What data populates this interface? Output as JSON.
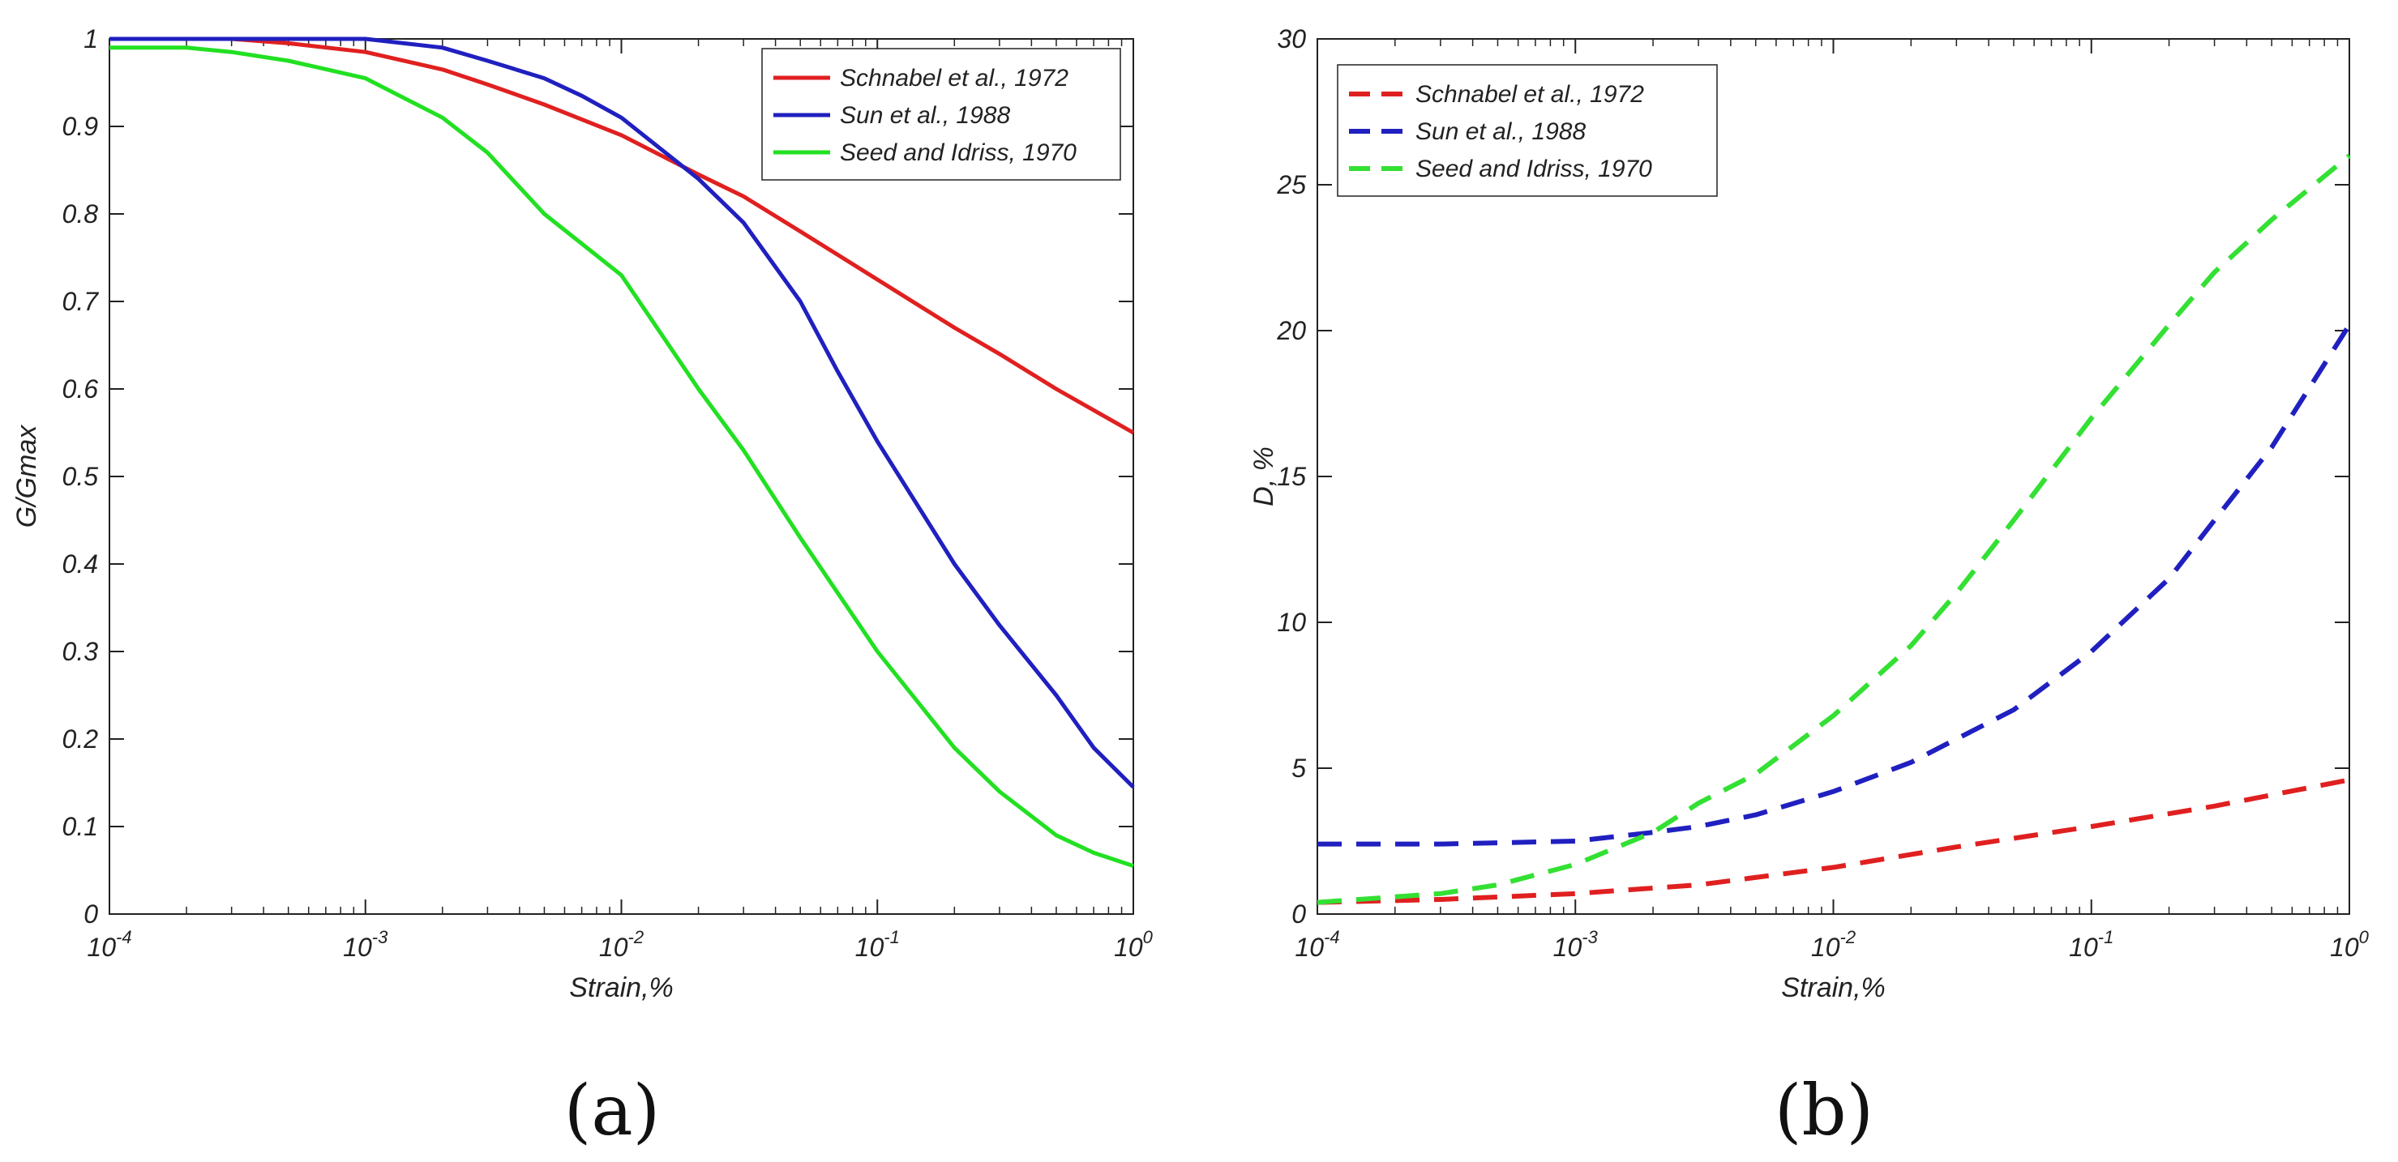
{
  "chart_data": [
    {
      "type": "line",
      "panel": "a",
      "caption": "(a)",
      "xscale": "log",
      "xlim": [
        0.0001,
        1
      ],
      "ylim": [
        0,
        1
      ],
      "xlabel": "Strain,%",
      "ylabel": "G/Gmax",
      "legend_position": "top-right",
      "grid": false,
      "xticks": [
        {
          "value": 0.0001,
          "base": "10",
          "exp": "-4"
        },
        {
          "value": 0.001,
          "base": "10",
          "exp": "-3"
        },
        {
          "value": 0.01,
          "base": "10",
          "exp": "-2"
        },
        {
          "value": 0.1,
          "base": "10",
          "exp": "-1"
        },
        {
          "value": 1,
          "base": "10",
          "exp": "0"
        }
      ],
      "yticks": [
        {
          "value": 0,
          "label": "0"
        },
        {
          "value": 0.1,
          "label": "0.1"
        },
        {
          "value": 0.2,
          "label": "0.2"
        },
        {
          "value": 0.3,
          "label": "0.3"
        },
        {
          "value": 0.4,
          "label": "0.4"
        },
        {
          "value": 0.5,
          "label": "0.5"
        },
        {
          "value": 0.6,
          "label": "0.6"
        },
        {
          "value": 0.7,
          "label": "0.7"
        },
        {
          "value": 0.8,
          "label": "0.8"
        },
        {
          "value": 0.9,
          "label": "0.9"
        },
        {
          "value": 1,
          "label": "1"
        }
      ],
      "series": [
        {
          "name": "Schnabel et al., 1972",
          "color": "#e02020",
          "dashed": false,
          "x": [
            0.0001,
            0.0003,
            0.0005,
            0.001,
            0.002,
            0.003,
            0.005,
            0.01,
            0.02,
            0.03,
            0.05,
            0.1,
            0.2,
            0.3,
            0.5,
            1
          ],
          "y": [
            1.0,
            1.0,
            0.995,
            0.985,
            0.965,
            0.948,
            0.925,
            0.89,
            0.845,
            0.82,
            0.78,
            0.725,
            0.67,
            0.64,
            0.6,
            0.55
          ]
        },
        {
          "name": "Sun et al., 1988",
          "color": "#2020c0",
          "dashed": false,
          "x": [
            0.0001,
            0.0003,
            0.001,
            0.002,
            0.003,
            0.005,
            0.007,
            0.01,
            0.02,
            0.03,
            0.05,
            0.07,
            0.1,
            0.2,
            0.3,
            0.5,
            0.7,
            1
          ],
          "y": [
            1.0,
            1.0,
            1.0,
            0.99,
            0.975,
            0.955,
            0.935,
            0.91,
            0.84,
            0.79,
            0.7,
            0.62,
            0.54,
            0.4,
            0.33,
            0.25,
            0.19,
            0.145
          ]
        },
        {
          "name": "Seed and Idriss, 1970",
          "color": "#22e022",
          "dashed": false,
          "x": [
            0.0001,
            0.0002,
            0.0003,
            0.0005,
            0.001,
            0.002,
            0.003,
            0.005,
            0.01,
            0.02,
            0.03,
            0.05,
            0.1,
            0.2,
            0.3,
            0.5,
            0.7,
            1
          ],
          "y": [
            0.99,
            0.99,
            0.985,
            0.975,
            0.955,
            0.91,
            0.87,
            0.8,
            0.73,
            0.6,
            0.53,
            0.43,
            0.3,
            0.19,
            0.14,
            0.09,
            0.07,
            0.055
          ]
        }
      ]
    },
    {
      "type": "line",
      "panel": "b",
      "caption": "(b)",
      "xscale": "log",
      "xlim": [
        0.0001,
        1
      ],
      "ylim": [
        0,
        30
      ],
      "xlabel": "Strain,%",
      "ylabel": "D, %",
      "legend_position": "top-left",
      "grid": false,
      "xticks": [
        {
          "value": 0.0001,
          "base": "10",
          "exp": "-4"
        },
        {
          "value": 0.001,
          "base": "10",
          "exp": "-3"
        },
        {
          "value": 0.01,
          "base": "10",
          "exp": "-2"
        },
        {
          "value": 0.1,
          "base": "10",
          "exp": "-1"
        },
        {
          "value": 1,
          "base": "10",
          "exp": "0"
        }
      ],
      "yticks": [
        {
          "value": 0,
          "label": "0"
        },
        {
          "value": 5,
          "label": "5"
        },
        {
          "value": 10,
          "label": "10"
        },
        {
          "value": 15,
          "label": "15"
        },
        {
          "value": 20,
          "label": "20"
        },
        {
          "value": 25,
          "label": "25"
        },
        {
          "value": 30,
          "label": "30"
        }
      ],
      "series": [
        {
          "name": "Schnabel et al., 1972",
          "color": "#e02020",
          "dashed": true,
          "x": [
            0.0001,
            0.0003,
            0.001,
            0.003,
            0.01,
            0.03,
            0.1,
            0.3,
            1
          ],
          "y": [
            0.4,
            0.5,
            0.7,
            1.0,
            1.6,
            2.3,
            3.0,
            3.7,
            4.6
          ]
        },
        {
          "name": "Sun et al., 1988",
          "color": "#2020c0",
          "dashed": true,
          "x": [
            0.0001,
            0.0003,
            0.001,
            0.002,
            0.003,
            0.005,
            0.01,
            0.02,
            0.03,
            0.05,
            0.1,
            0.2,
            0.3,
            0.5,
            1
          ],
          "y": [
            2.4,
            2.4,
            2.5,
            2.8,
            3.0,
            3.4,
            4.2,
            5.2,
            6.0,
            7.0,
            9.0,
            11.5,
            13.5,
            16.0,
            20.2
          ]
        },
        {
          "name": "Seed and Idriss, 1970",
          "color": "#33e033",
          "dashed": true,
          "x": [
            0.0001,
            0.0003,
            0.0005,
            0.001,
            0.002,
            0.003,
            0.005,
            0.01,
            0.02,
            0.03,
            0.05,
            0.1,
            0.2,
            0.3,
            0.5,
            1
          ],
          "y": [
            0.4,
            0.7,
            1.0,
            1.7,
            2.8,
            3.8,
            4.8,
            6.8,
            9.2,
            11.0,
            13.5,
            17.0,
            20.2,
            22.0,
            23.8,
            26.0
          ]
        }
      ]
    }
  ]
}
